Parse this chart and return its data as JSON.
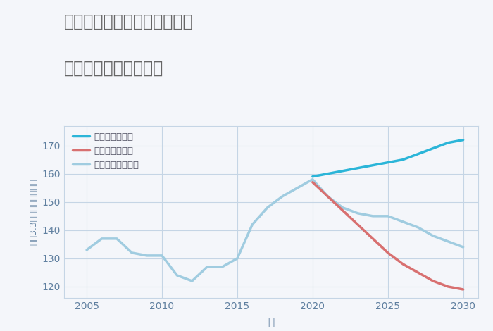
{
  "title_line1": "兵庫県神戸市中央区北野町の",
  "title_line2": "中古戸建ての価格推移",
  "xlabel": "年",
  "ylabel": "坪（3.3㎡）単価（万円）",
  "background_color": "#f4f6fa",
  "grid_color": "#c5d5e5",
  "xlim": [
    2003.5,
    2031
  ],
  "ylim": [
    116,
    177
  ],
  "yticks": [
    120,
    130,
    140,
    150,
    160,
    170
  ],
  "xticks": [
    2005,
    2010,
    2015,
    2020,
    2025,
    2030
  ],
  "good_scenario": {
    "x": [
      2020,
      2021,
      2022,
      2023,
      2024,
      2025,
      2026,
      2027,
      2028,
      2029,
      2030
    ],
    "y": [
      159,
      160,
      161,
      162,
      163,
      164,
      165,
      167,
      169,
      171,
      172
    ],
    "color": "#2bb5d8",
    "label": "グッドシナリオ",
    "linewidth": 2.5
  },
  "bad_scenario": {
    "x": [
      2020,
      2021,
      2022,
      2023,
      2024,
      2025,
      2026,
      2027,
      2028,
      2029,
      2030
    ],
    "y": [
      157,
      152,
      147,
      142,
      137,
      132,
      128,
      125,
      122,
      120,
      119
    ],
    "color": "#d87070",
    "label": "バッドシナリオ",
    "linewidth": 2.5
  },
  "normal_scenario": {
    "x": [
      2005,
      2006,
      2007,
      2008,
      2009,
      2010,
      2011,
      2012,
      2013,
      2014,
      2015,
      2016,
      2017,
      2018,
      2019,
      2020,
      2021,
      2022,
      2023,
      2024,
      2025,
      2026,
      2027,
      2028,
      2029,
      2030
    ],
    "y": [
      133,
      137,
      137,
      132,
      131,
      131,
      124,
      122,
      127,
      127,
      130,
      142,
      148,
      152,
      155,
      158,
      152,
      148,
      146,
      145,
      145,
      143,
      141,
      138,
      136,
      134
    ],
    "color": "#a0cce0",
    "label": "ノーマルシナリオ",
    "linewidth": 2.5
  },
  "title_color": "#666666",
  "axis_color": "#6080a0",
  "tick_color": "#6080a0",
  "legend_text_color": "#555566"
}
